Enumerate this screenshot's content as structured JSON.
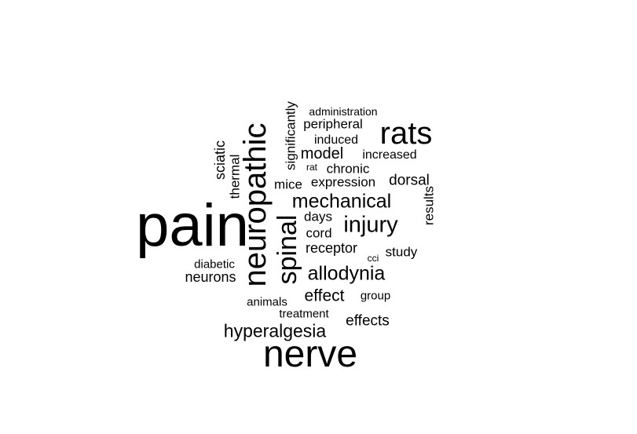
{
  "wordcloud": {
    "words": [
      "pain",
      "nerve",
      "neuropathic",
      "rats",
      "spinal",
      "injury",
      "mechanical",
      "allodynia",
      "hyperalgesia",
      "model",
      "significantly",
      "sciatic",
      "thermal",
      "results",
      "dorsal",
      "effects",
      "effect",
      "peripheral",
      "induced",
      "increased",
      "chronic",
      "expression",
      "mice",
      "neurons",
      "diabetic",
      "days",
      "cord",
      "receptor",
      "study",
      "group",
      "animals",
      "treatment",
      "administration",
      "rat",
      "cci"
    ]
  }
}
